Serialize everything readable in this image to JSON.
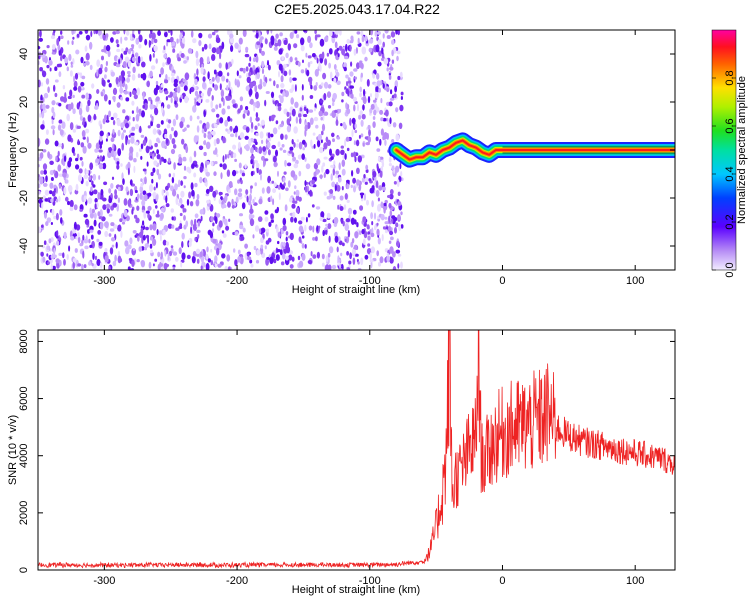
{
  "title": "C2E5.2025.043.17.04.R22",
  "colors": {
    "background": "#ffffff",
    "snr_line": "#ee2222",
    "spectrogram_noise": "#7b2ff7",
    "ridge": "#ff2020"
  },
  "chart_data": [
    {
      "type": "heatmap",
      "xlabel": "Height of straight line (km)",
      "ylabel": "Frequency (Hz)",
      "xlim": [
        -350,
        130
      ],
      "ylim": [
        -50,
        50
      ],
      "xticks": [
        -300,
        -200,
        -100,
        0,
        100
      ],
      "yticks": [
        -40,
        -20,
        0,
        20,
        40
      ],
      "grid": false,
      "noise_region_x": [
        -350,
        -80
      ],
      "ridge": {
        "x": [
          -80,
          -75,
          -70,
          -65,
          -60,
          -55,
          -50,
          -45,
          -40,
          -35,
          -30,
          -25,
          -20,
          -15,
          -10,
          -5,
          0,
          130
        ],
        "y": [
          0,
          -2,
          -4,
          -3,
          -3,
          -1,
          -2,
          0,
          1,
          3,
          4,
          2,
          1,
          -1,
          -2,
          0,
          0,
          0
        ]
      },
      "colorbar": {
        "label": "Normalized spectral amplitude",
        "range": [
          0,
          1
        ],
        "ticks": [
          "0.0",
          "0.2",
          "0.4",
          "0.6",
          "0.8"
        ]
      }
    },
    {
      "type": "line",
      "xlabel": "Height of straight line (km)",
      "ylabel": "SNR (10 * v/v)",
      "xlim": [
        -350,
        130
      ],
      "ylim": [
        0,
        8400
      ],
      "xticks": [
        -300,
        -200,
        -100,
        0,
        100
      ],
      "yticks": [
        0,
        2000,
        4000,
        6000,
        8000
      ],
      "grid": false,
      "series": [
        {
          "x": [
            -350,
            -300,
            -250,
            -200,
            -150,
            -100,
            -80,
            -60,
            -55,
            -50,
            -45,
            -42,
            -40,
            -38,
            -35,
            -30,
            -25,
            -20,
            -18,
            -16,
            -14,
            -10,
            -5,
            0,
            10,
            20,
            30,
            35,
            40,
            50,
            60,
            70,
            80,
            90,
            100,
            110,
            120,
            130
          ],
          "values": [
            180,
            170,
            180,
            170,
            180,
            180,
            200,
            300,
            600,
            1500,
            2800,
            4200,
            8200,
            2800,
            3200,
            3600,
            4200,
            4600,
            7600,
            4000,
            3800,
            4200,
            4600,
            4800,
            5000,
            5100,
            5300,
            5500,
            5000,
            4700,
            4500,
            4400,
            4300,
            4200,
            4100,
            4000,
            3900,
            3700
          ]
        }
      ]
    }
  ]
}
